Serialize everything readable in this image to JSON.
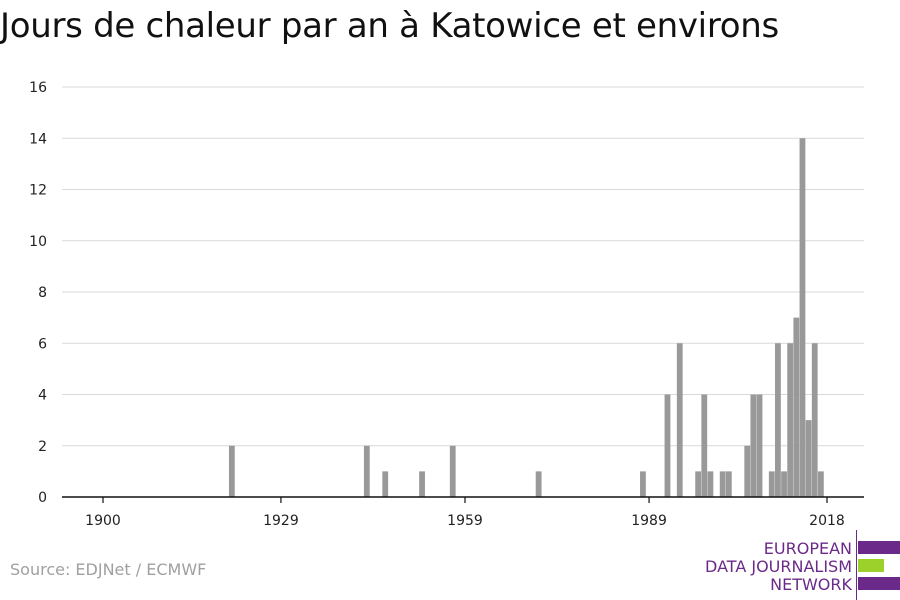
{
  "chart_data": {
    "type": "bar",
    "title": "Jours de chaleur par an à Katowice et environs",
    "xlabel": "",
    "ylabel": "",
    "xlim": [
      1900,
      2018
    ],
    "ylim": [
      0,
      16
    ],
    "y_ticks": [
      0,
      2,
      4,
      6,
      8,
      10,
      12,
      14,
      16
    ],
    "x_ticks": [
      1900,
      1929,
      1959,
      1989,
      2018
    ],
    "grid": true,
    "legend": "none",
    "color": "#999999",
    "x": [
      1921,
      1943,
      1946,
      1952,
      1957,
      1971,
      1988,
      1992,
      1994,
      1997,
      1998,
      1999,
      2001,
      2002,
      2005,
      2006,
      2007,
      2009,
      2010,
      2011,
      2012,
      2013,
      2014,
      2015,
      2016,
      2017
    ],
    "values": [
      2,
      2,
      1,
      1,
      2,
      1,
      1,
      4,
      6,
      1,
      4,
      1,
      1,
      1,
      2,
      4,
      4,
      1,
      6,
      1,
      6,
      7,
      14,
      3,
      6,
      1
    ]
  },
  "source": "Source: EDJNet / ECMWF",
  "logo": {
    "lines": [
      "EUROPEAN",
      "DATA JOURNALISM",
      "NETWORK"
    ],
    "primary_color": "#6b2a8a",
    "accent_color": "#9bd12a"
  }
}
